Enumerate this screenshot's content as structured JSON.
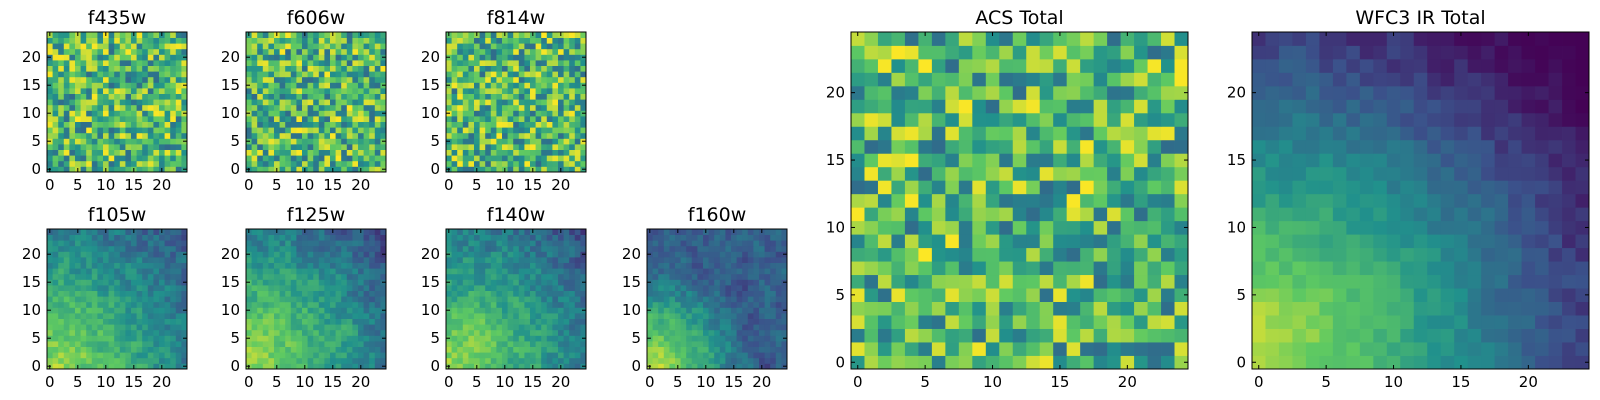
{
  "chart_data": [
    {
      "type": "heatmap",
      "title": "f435w",
      "grid_size": 25,
      "xticks": [
        "0",
        "5",
        "10",
        "15",
        "20"
      ],
      "yticks": [
        "0",
        "5",
        "10",
        "15",
        "20"
      ],
      "colormap": "viridis",
      "seed": 11,
      "pattern": "noise"
    },
    {
      "type": "heatmap",
      "title": "f606w",
      "grid_size": 25,
      "xticks": [
        "0",
        "5",
        "10",
        "15",
        "20"
      ],
      "yticks": [
        "0",
        "5",
        "10",
        "15",
        "20"
      ],
      "colormap": "viridis",
      "seed": 23,
      "pattern": "noise"
    },
    {
      "type": "heatmap",
      "title": "f814w",
      "grid_size": 25,
      "xticks": [
        "0",
        "5",
        "10",
        "15",
        "20"
      ],
      "yticks": [
        "0",
        "5",
        "10",
        "15",
        "20"
      ],
      "colormap": "viridis",
      "seed": 37,
      "pattern": "noise"
    },
    {
      "type": "heatmap",
      "title": "f105w",
      "grid_size": 25,
      "xticks": [
        "0",
        "5",
        "10",
        "15",
        "20"
      ],
      "yticks": [
        "0",
        "5",
        "10",
        "15",
        "20"
      ],
      "colormap": "viridis",
      "seed": 41,
      "pattern": "blob"
    },
    {
      "type": "heatmap",
      "title": "f125w",
      "grid_size": 25,
      "xticks": [
        "0",
        "5",
        "10",
        "15",
        "20"
      ],
      "yticks": [
        "0",
        "5",
        "10",
        "15",
        "20"
      ],
      "colormap": "viridis",
      "seed": 53,
      "pattern": "blob"
    },
    {
      "type": "heatmap",
      "title": "f140w",
      "grid_size": 25,
      "xticks": [
        "0",
        "5",
        "10",
        "15",
        "20"
      ],
      "yticks": [
        "0",
        "5",
        "10",
        "15",
        "20"
      ],
      "colormap": "viridis",
      "seed": 67,
      "pattern": "blob"
    },
    {
      "type": "heatmap",
      "title": "f160w",
      "grid_size": 25,
      "xticks": [
        "0",
        "5",
        "10",
        "15",
        "20"
      ],
      "yticks": [
        "0",
        "5",
        "10",
        "15",
        "20"
      ],
      "colormap": "viridis",
      "seed": 79,
      "pattern": "corner"
    },
    {
      "type": "heatmap",
      "title": "ACS Total",
      "grid_size": 25,
      "xticks": [
        "0",
        "5",
        "10",
        "15",
        "20"
      ],
      "yticks": [
        "0",
        "5",
        "10",
        "15",
        "20"
      ],
      "colormap": "viridis",
      "seed": 83,
      "pattern": "noise"
    },
    {
      "type": "heatmap",
      "title": "WFC3 IR Total",
      "grid_size": 25,
      "xticks": [
        "0",
        "5",
        "10",
        "15",
        "20"
      ],
      "yticks": [
        "0",
        "5",
        "10",
        "15",
        "20"
      ],
      "colormap": "viridis",
      "seed": 97,
      "pattern": "smooth"
    }
  ],
  "colors": {
    "viridis_stops": [
      "#440154",
      "#3b528b",
      "#21918c",
      "#5ec962",
      "#fde725"
    ],
    "axes": "#000000",
    "background": "#ffffff"
  }
}
